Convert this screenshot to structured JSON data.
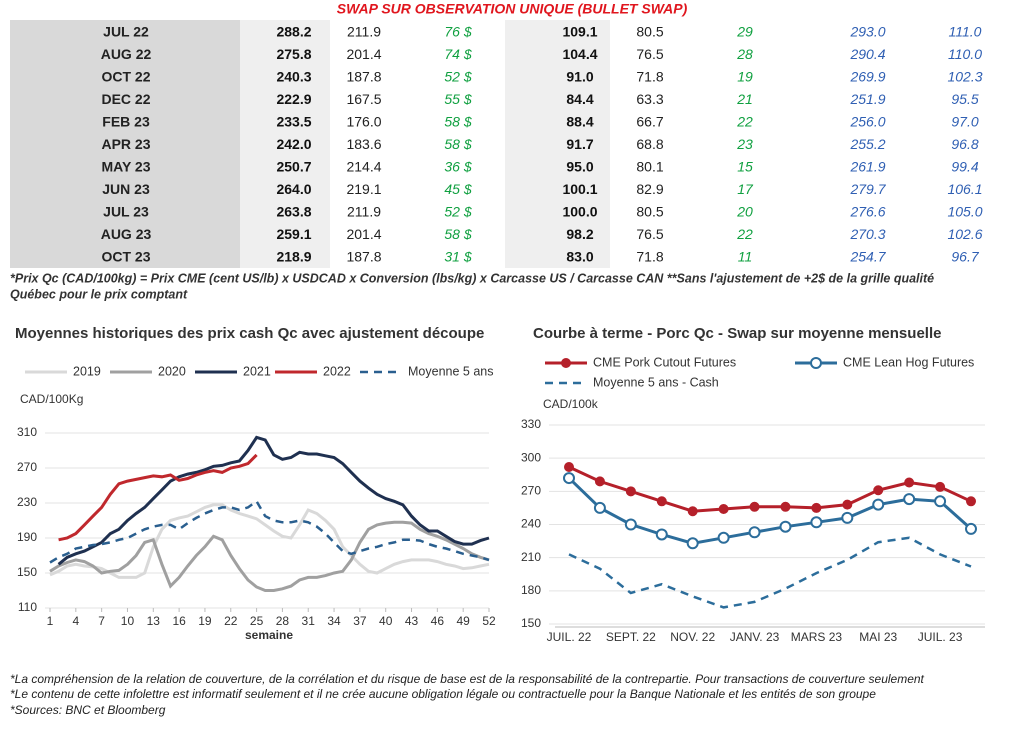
{
  "header": {
    "title": "SWAP SUR OBSERVATION UNIQUE (BULLET SWAP)"
  },
  "table": {
    "rows": [
      [
        "JUL 22",
        "288.2",
        "211.9",
        "76 $",
        "109.1",
        "80.5",
        "29",
        "293.0",
        "111.0"
      ],
      [
        "AUG 22",
        "275.8",
        "201.4",
        "74 $",
        "104.4",
        "76.5",
        "28",
        "290.4",
        "110.0"
      ],
      [
        "OCT 22",
        "240.3",
        "187.8",
        "52 $",
        "91.0",
        "71.8",
        "19",
        "269.9",
        "102.3"
      ],
      [
        "DEC 22",
        "222.9",
        "167.5",
        "55 $",
        "84.4",
        "63.3",
        "21",
        "251.9",
        "95.5"
      ],
      [
        "FEB 23",
        "233.5",
        "176.0",
        "58 $",
        "88.4",
        "66.7",
        "22",
        "256.0",
        "97.0"
      ],
      [
        "APR 23",
        "242.0",
        "183.6",
        "58 $",
        "91.7",
        "68.8",
        "23",
        "255.2",
        "96.8"
      ],
      [
        "MAY 23",
        "250.7",
        "214.4",
        "36 $",
        "95.0",
        "80.1",
        "15",
        "261.9",
        "99.4"
      ],
      [
        "JUN 23",
        "264.0",
        "219.1",
        "45 $",
        "100.1",
        "82.9",
        "17",
        "279.7",
        "106.1"
      ],
      [
        "JUL 23",
        "263.8",
        "211.9",
        "52 $",
        "100.0",
        "80.5",
        "20",
        "276.6",
        "105.0"
      ],
      [
        "AUG 23",
        "259.1",
        "201.4",
        "58 $",
        "98.2",
        "76.5",
        "22",
        "270.3",
        "102.6"
      ],
      [
        "OCT 23",
        "218.9",
        "187.8",
        "31 $",
        "83.0",
        "71.8",
        "11",
        "254.7",
        "96.7"
      ]
    ]
  },
  "footnote": [
    "*Prix Qc (CAD/100kg) = Prix CME (cent US/lb) x USDCAD x Conversion (lbs/kg) x Carcasse US / Carcasse CAN **Sans l'ajustement de +2$ de la grille qualité",
    "Québec pour le prix comptant"
  ],
  "chart_data": [
    {
      "type": "line",
      "title": "Moyennes historiques des prix cash Qc avec ajustement découpe",
      "y_label": "CAD/100Kg",
      "x_label": "semaine",
      "x": [
        1,
        2,
        3,
        4,
        5,
        6,
        7,
        8,
        9,
        10,
        11,
        12,
        13,
        14,
        15,
        16,
        17,
        18,
        19,
        20,
        21,
        22,
        23,
        24,
        25,
        26,
        27,
        28,
        29,
        30,
        31,
        32,
        33,
        34,
        35,
        36,
        37,
        38,
        39,
        40,
        41,
        42,
        43,
        44,
        45,
        46,
        47,
        48,
        49,
        50,
        51,
        52
      ],
      "xlim": [
        1,
        52
      ],
      "xticks": [
        1,
        4,
        7,
        10,
        13,
        16,
        19,
        22,
        25,
        28,
        31,
        34,
        37,
        40,
        43,
        46,
        49,
        52
      ],
      "ylim": [
        110,
        310
      ],
      "yticks": [
        110,
        150,
        190,
        230,
        270,
        310
      ],
      "grid": true,
      "series": [
        {
          "name": "2019",
          "color": "#d9d9d9",
          "values": [
            148,
            152,
            158,
            160,
            158,
            157,
            155,
            150,
            145,
            145,
            145,
            150,
            180,
            200,
            210,
            213,
            215,
            220,
            225,
            228,
            228,
            222,
            218,
            215,
            212,
            205,
            198,
            192,
            190,
            205,
            222,
            218,
            210,
            200,
            180,
            170,
            160,
            152,
            150,
            155,
            160,
            163,
            165,
            165,
            165,
            163,
            160,
            158,
            155,
            156,
            158,
            160
          ]
        },
        {
          "name": "2020",
          "color": "#a0a0a0",
          "values": [
            152,
            158,
            162,
            165,
            163,
            158,
            150,
            152,
            153,
            160,
            170,
            185,
            188,
            160,
            135,
            145,
            158,
            170,
            180,
            192,
            188,
            170,
            155,
            142,
            134,
            130,
            130,
            132,
            135,
            142,
            145,
            145,
            147,
            150,
            152,
            165,
            185,
            200,
            205,
            207,
            208,
            208,
            207,
            200,
            195,
            192,
            188,
            183,
            178,
            172,
            168,
            165
          ]
        },
        {
          "name": "2021",
          "color": "#1f3050",
          "values": [
            null,
            160,
            168,
            172,
            175,
            180,
            185,
            195,
            200,
            210,
            218,
            225,
            235,
            245,
            255,
            260,
            263,
            265,
            268,
            272,
            273,
            276,
            278,
            290,
            305,
            302,
            285,
            280,
            282,
            288,
            286,
            286,
            284,
            282,
            275,
            265,
            255,
            247,
            240,
            235,
            232,
            228,
            215,
            205,
            198,
            198,
            192,
            186,
            183,
            183,
            187,
            190
          ]
        },
        {
          "name": "2022",
          "color": "#c0282d",
          "values": [
            null,
            188,
            190,
            195,
            205,
            215,
            225,
            240,
            252,
            255,
            257,
            259,
            261,
            260,
            262,
            256,
            258,
            262,
            265,
            267,
            265,
            270,
            272,
            275,
            285,
            null,
            null,
            null,
            null,
            null,
            null,
            null,
            null,
            null,
            null,
            null,
            null,
            null,
            null,
            null,
            null,
            null,
            null,
            null,
            null,
            null,
            null,
            null,
            null,
            null,
            null,
            null
          ]
        },
        {
          "name": "Moyenne 5 ans",
          "color": "#2a5f8f",
          "dash": true,
          "values": [
            162,
            168,
            172,
            178,
            180,
            182,
            183,
            185,
            188,
            190,
            195,
            200,
            203,
            205,
            205,
            200,
            207,
            213,
            218,
            222,
            225,
            225,
            222,
            225,
            232,
            215,
            210,
            208,
            208,
            210,
            208,
            203,
            195,
            185,
            175,
            172,
            175,
            178,
            180,
            183,
            185,
            188,
            188,
            187,
            183,
            180,
            178,
            175,
            172,
            170,
            168,
            165
          ]
        }
      ]
    },
    {
      "type": "line",
      "title": "Courbe à terme - Porc Qc - Swap sur moyenne mensuelle",
      "y_label": "CAD/100k",
      "categories": [
        "JUIL. 22",
        null,
        "SEPT. 22",
        null,
        "NOV. 22",
        null,
        "JANV. 23",
        null,
        "MARS 23",
        null,
        "MAI 23",
        null,
        "JUIL. 23",
        null
      ],
      "ylim": [
        150,
        330
      ],
      "yticks": [
        150,
        180,
        210,
        240,
        270,
        300,
        330
      ],
      "grid": true,
      "series": [
        {
          "name": "CME Pork Cutout Futures",
          "color": "#b5202a",
          "marker": "filled",
          "values": [
            292,
            279,
            270,
            261,
            252,
            254,
            256,
            256,
            255,
            258,
            271,
            278,
            274,
            261
          ]
        },
        {
          "name": "CME Lean Hog Futures",
          "color": "#2c6d9b",
          "marker": "open",
          "values": [
            282,
            255,
            240,
            231,
            223,
            228,
            233,
            238,
            242,
            246,
            258,
            263,
            261,
            236
          ]
        },
        {
          "name": "Moyenne 5 ans - Cash",
          "color": "#2c6d9b",
          "dash": true,
          "values": [
            213,
            200,
            178,
            186,
            175,
            165,
            170,
            182,
            196,
            208,
            224,
            228,
            213,
            202
          ]
        }
      ]
    }
  ],
  "footer_notes": [
    "*La compréhension de la relation de couverture, de la corrélation et du risque de base est de la responsabilité de la contrepartie. Pour transactions de couverture seulement",
    "*Le contenu de cette infolettre est informatif seulement et il ne crée aucune obligation légale ou contractuelle pour la Banque Nationale et les entités de son groupe",
    "*Sources: BNC et Bloomberg"
  ]
}
